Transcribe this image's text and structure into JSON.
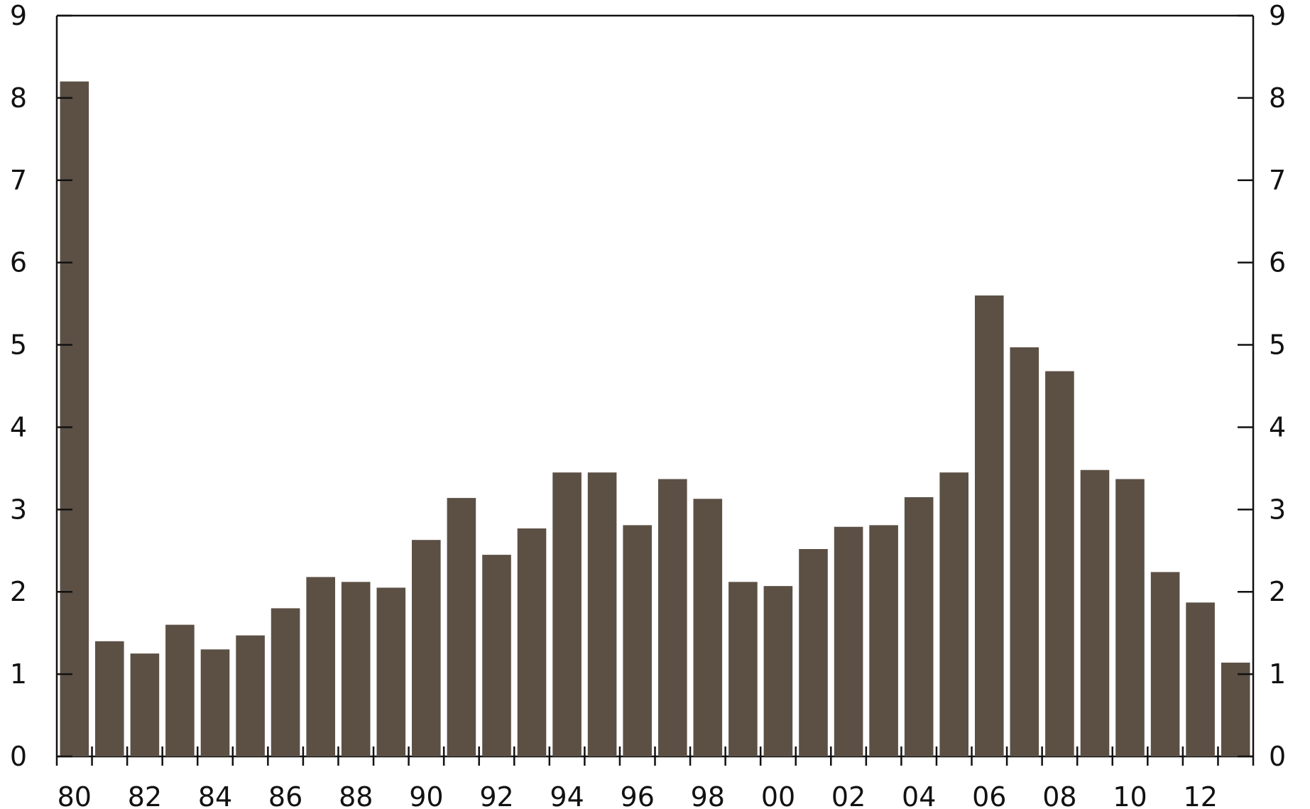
{
  "chart_data": {
    "type": "bar",
    "title": "",
    "xlabel": "",
    "ylabel": "",
    "ylim": [
      0,
      9
    ],
    "yticks": [
      0,
      1,
      2,
      3,
      4,
      5,
      6,
      7,
      8,
      9
    ],
    "categories": [
      "1980",
      "1981",
      "1982",
      "1983",
      "1984",
      "1985",
      "1986",
      "1987",
      "1988",
      "1989",
      "1990",
      "1991",
      "1992",
      "1993",
      "1994",
      "1995",
      "1996",
      "1997",
      "1998",
      "1999",
      "2000",
      "2001",
      "2002",
      "2003",
      "2004",
      "2005",
      "2006",
      "2007",
      "2008",
      "2009",
      "2010",
      "2011",
      "2012",
      "2013"
    ],
    "xtick_labels": [
      "80",
      "",
      "82",
      "",
      "84",
      "",
      "86",
      "",
      "88",
      "",
      "90",
      "",
      "92",
      "",
      "94",
      "",
      "96",
      "",
      "98",
      "",
      "00",
      "",
      "02",
      "",
      "04",
      "",
      "06",
      "",
      "08",
      "",
      "10",
      "",
      "12",
      ""
    ],
    "values": [
      8.2,
      1.4,
      1.25,
      1.6,
      1.3,
      1.47,
      1.8,
      2.18,
      2.12,
      2.05,
      2.63,
      3.14,
      2.45,
      2.77,
      3.45,
      3.45,
      2.81,
      3.37,
      3.13,
      2.12,
      2.07,
      2.52,
      2.79,
      2.81,
      3.15,
      3.45,
      5.6,
      4.97,
      4.68,
      3.48,
      3.37,
      2.24,
      1.87,
      1.14
    ],
    "grid": false,
    "right_axis_mirrored": true,
    "colors": {
      "bar": "#5c5045",
      "axis": "#111111"
    }
  }
}
